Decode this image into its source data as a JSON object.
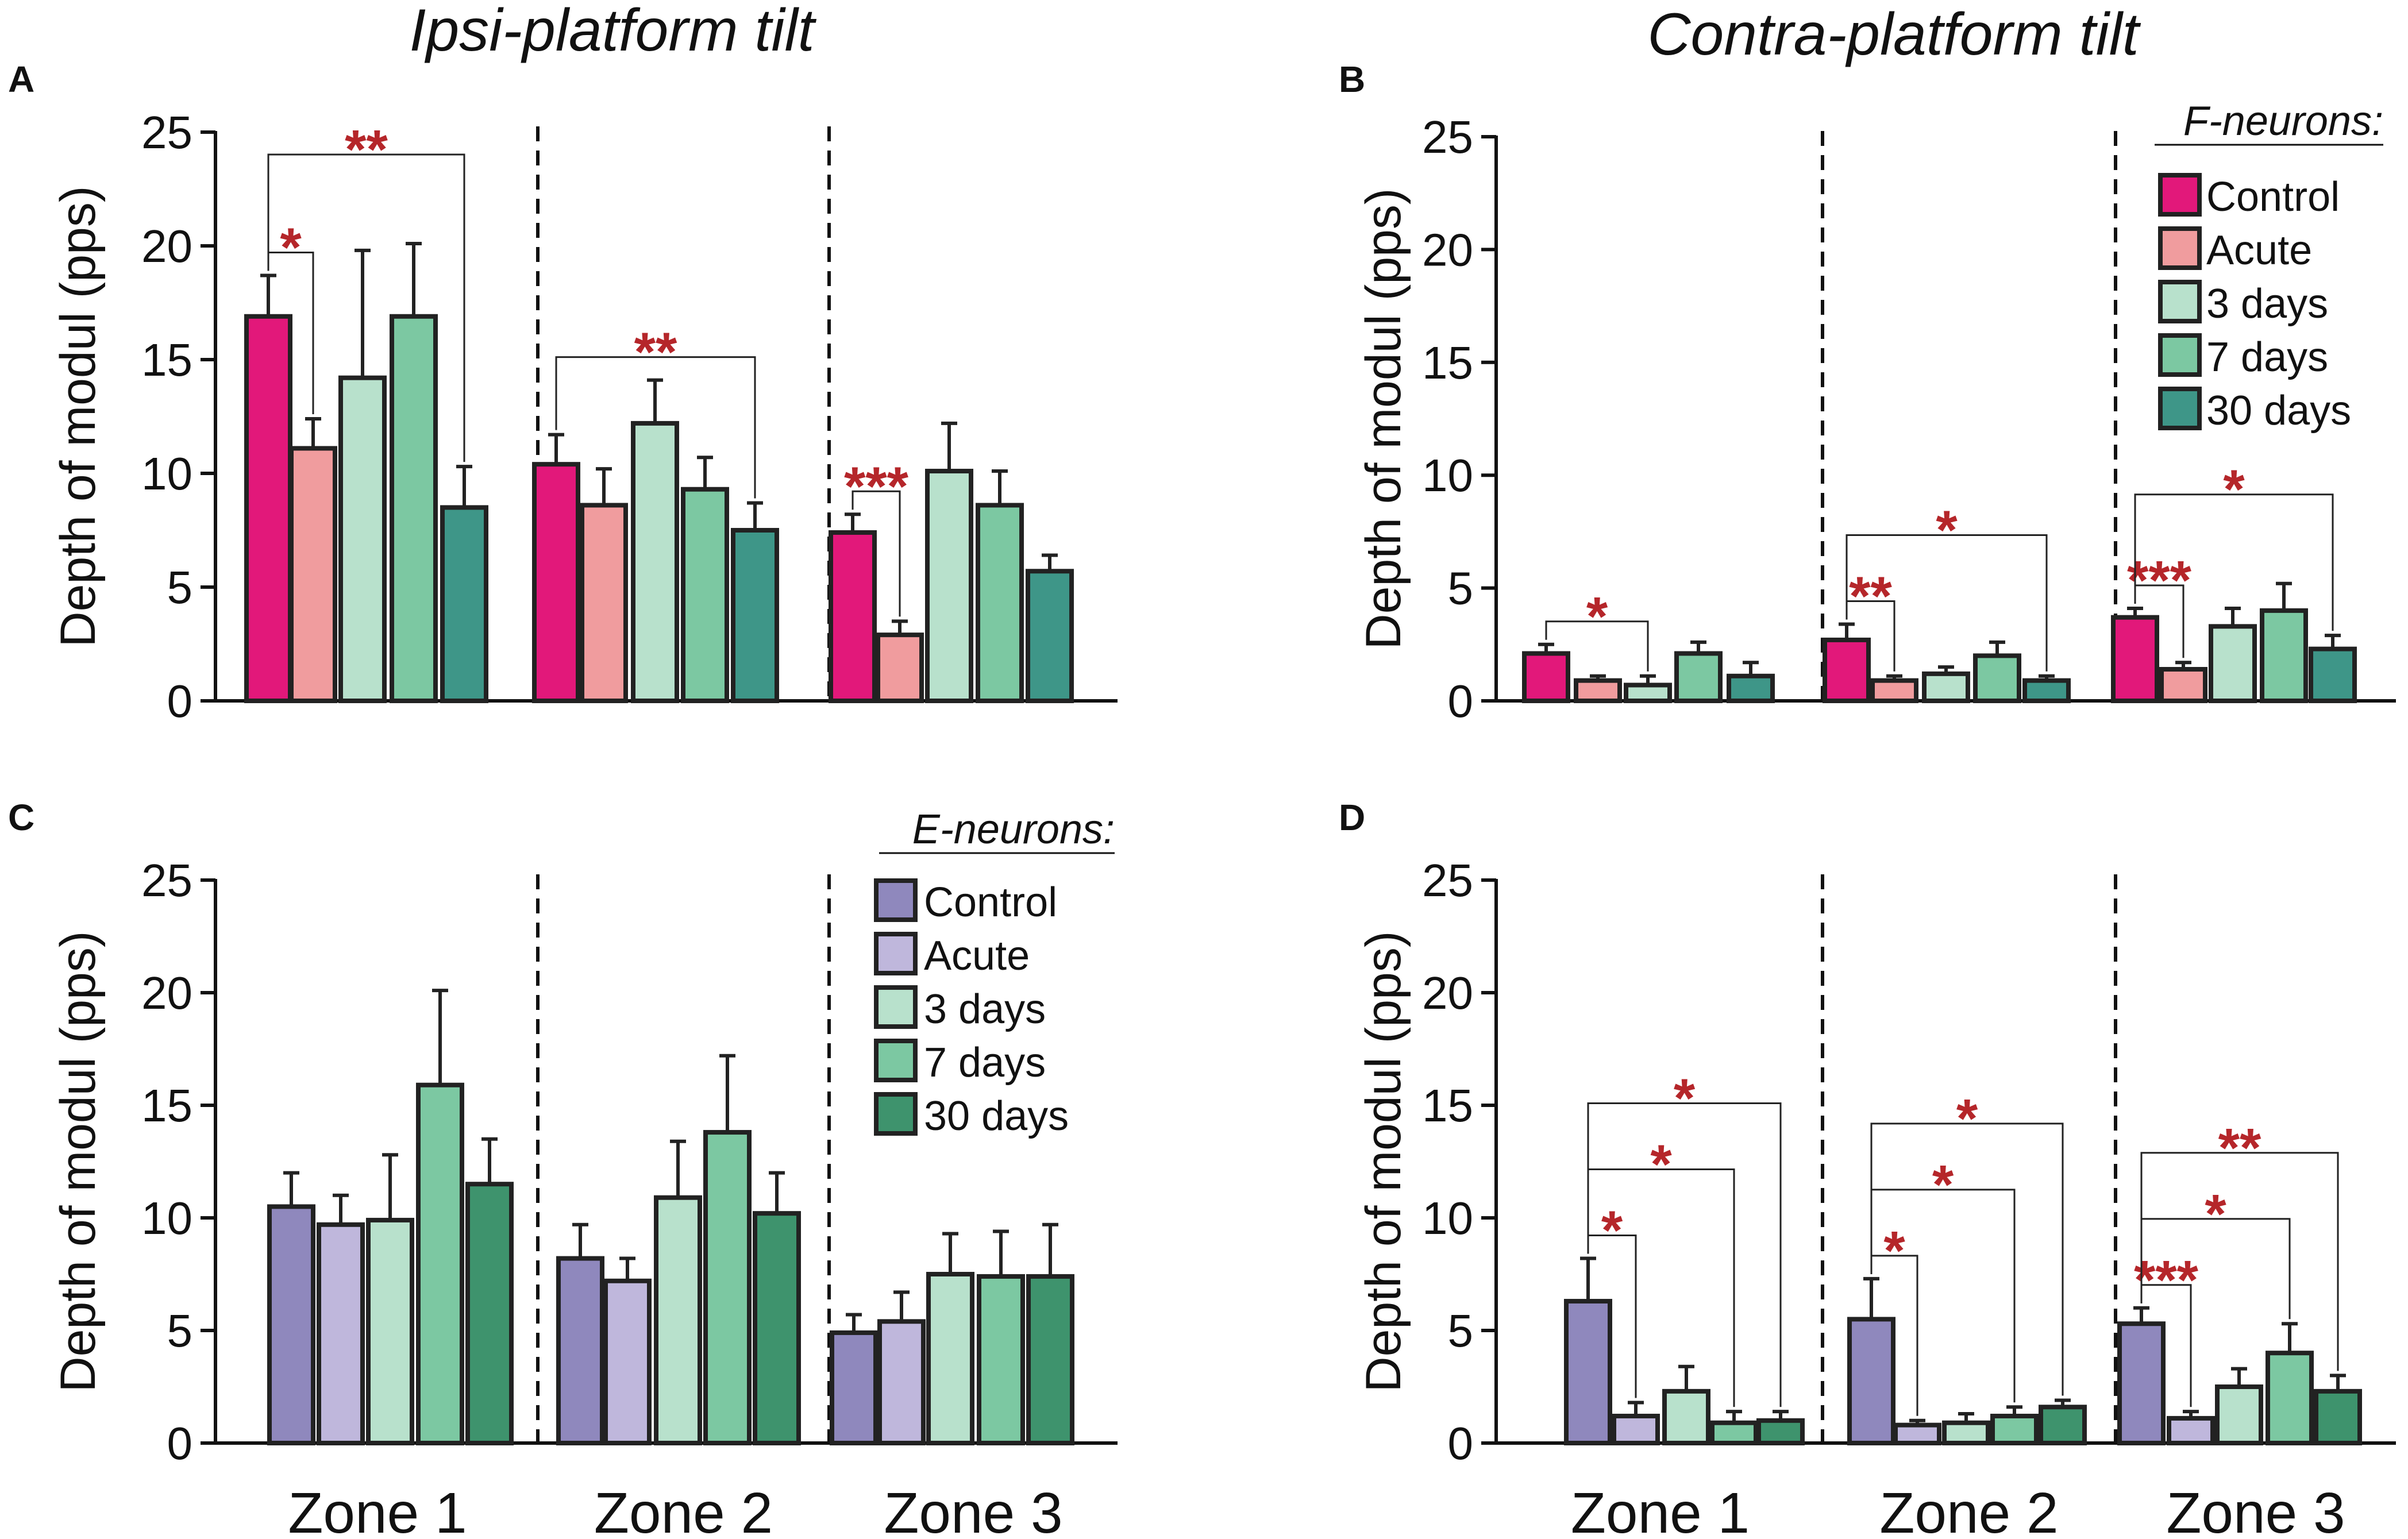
{
  "titles": {
    "left": "Ipsi-platform tilt",
    "right": "Contra-platform tilt"
  },
  "legends": {
    "f": {
      "head": "F-neurons:",
      "labels": [
        "Control",
        "Acute",
        "3 days",
        "7 days",
        "30 days"
      ]
    },
    "e": {
      "head": "E-neurons:",
      "labels": [
        "Control",
        "Acute",
        "3 days",
        "7 days",
        "30 days"
      ]
    }
  },
  "colors": {
    "f": [
      "#e2187a",
      "#f09c9e",
      "#b8e1cc",
      "#7cc8a2",
      "#3e9688"
    ],
    "e": [
      "#8f88bd",
      "#bfb7dc",
      "#b8e1cc",
      "#7cc8a2",
      "#3e936d"
    ],
    "star": "#b5262a"
  },
  "chart_data": [
    {
      "type": "bar",
      "panel": "A",
      "title": "Ipsi-platform tilt",
      "neurons": "F-neurons",
      "ylabel": "Depth of modul (pps)",
      "ylim": [
        0,
        25
      ],
      "yticks": [
        "0",
        "5",
        "10",
        "15",
        "20",
        "25"
      ],
      "categories": [
        "Zone 1",
        "Zone 2",
        "Zone 3"
      ],
      "series_names": [
        "Control",
        "Acute",
        "3 days",
        "7 days",
        "30 days"
      ],
      "values": [
        [
          16.9,
          11.1,
          14.2,
          16.9,
          8.5
        ],
        [
          10.4,
          8.6,
          12.2,
          9.3,
          7.5
        ],
        [
          7.4,
          2.9,
          10.1,
          8.6,
          5.7
        ]
      ],
      "errors": [
        [
          1.8,
          1.3,
          5.6,
          3.2,
          1.8
        ],
        [
          1.3,
          1.6,
          1.9,
          1.4,
          1.2
        ],
        [
          0.8,
          0.6,
          2.1,
          1.5,
          0.7
        ]
      ],
      "significance": [
        {
          "zone": 0,
          "from": 0,
          "to": 1,
          "level": 1,
          "label": "*"
        },
        {
          "zone": 0,
          "from": 0,
          "to": 4,
          "level": 2,
          "label": "**"
        },
        {
          "zone": 1,
          "from": 0,
          "to": 4,
          "level": 1,
          "label": "**"
        },
        {
          "zone": 2,
          "from": 0,
          "to": 1,
          "level": 1,
          "label": "***"
        }
      ]
    },
    {
      "type": "bar",
      "panel": "B",
      "title": "Contra-platform tilt",
      "neurons": "F-neurons",
      "ylabel": "Depth of modul (pps)",
      "ylim": [
        0,
        25
      ],
      "yticks": [
        "0",
        "5",
        "10",
        "15",
        "20",
        "25"
      ],
      "categories": [
        "Zone 1",
        "Zone 2",
        "Zone 3"
      ],
      "series_names": [
        "Control",
        "Acute",
        "3 days",
        "7 days",
        "30 days"
      ],
      "values": [
        [
          2.1,
          0.9,
          0.7,
          2.1,
          1.1
        ],
        [
          2.7,
          0.9,
          1.2,
          2.0,
          0.9
        ],
        [
          3.7,
          1.4,
          3.3,
          4.0,
          2.3
        ]
      ],
      "errors": [
        [
          0.4,
          0.2,
          0.4,
          0.5,
          0.6
        ],
        [
          0.7,
          0.2,
          0.3,
          0.6,
          0.2
        ],
        [
          0.4,
          0.3,
          0.8,
          1.2,
          0.6
        ]
      ],
      "significance": [
        {
          "zone": 0,
          "from": 0,
          "to": 2,
          "level": 1,
          "label": "*"
        },
        {
          "zone": 1,
          "from": 0,
          "to": 1,
          "level": 1,
          "label": "**"
        },
        {
          "zone": 1,
          "from": 0,
          "to": 4,
          "level": 2,
          "label": "*"
        },
        {
          "zone": 2,
          "from": 0,
          "to": 1,
          "level": 1,
          "label": "***"
        },
        {
          "zone": 2,
          "from": 0,
          "to": 4,
          "level": 2,
          "label": "*"
        }
      ]
    },
    {
      "type": "bar",
      "panel": "C",
      "title": "Ipsi-platform tilt",
      "neurons": "E-neurons",
      "ylabel": "Depth of modul (pps)",
      "ylim": [
        0,
        25
      ],
      "yticks": [
        "0",
        "5",
        "10",
        "15",
        "20",
        "25"
      ],
      "categories": [
        "Zone 1",
        "Zone 2",
        "Zone 3"
      ],
      "series_names": [
        "Control",
        "Acute",
        "3 days",
        "7 days",
        "30 days"
      ],
      "values": [
        [
          10.5,
          9.7,
          9.9,
          15.9,
          11.5
        ],
        [
          8.2,
          7.2,
          10.9,
          13.8,
          10.2
        ],
        [
          4.9,
          5.4,
          7.5,
          7.4,
          7.4
        ]
      ],
      "errors": [
        [
          1.5,
          1.3,
          2.9,
          4.2,
          2.0
        ],
        [
          1.5,
          1.0,
          2.5,
          3.4,
          1.8
        ],
        [
          0.8,
          1.3,
          1.8,
          2.0,
          2.3
        ]
      ],
      "significance": []
    },
    {
      "type": "bar",
      "panel": "D",
      "title": "Contra-platform tilt",
      "neurons": "E-neurons",
      "ylabel": "Depth of modul (pps)",
      "ylim": [
        0,
        25
      ],
      "yticks": [
        "0",
        "5",
        "10",
        "15",
        "20",
        "25"
      ],
      "categories": [
        "Zone 1",
        "Zone 2",
        "Zone 3"
      ],
      "series_names": [
        "Control",
        "Acute",
        "3 days",
        "7 days",
        "30 days"
      ],
      "values": [
        [
          6.3,
          1.2,
          2.3,
          0.9,
          1.0
        ],
        [
          5.5,
          0.8,
          0.9,
          1.2,
          1.6
        ],
        [
          5.3,
          1.1,
          2.5,
          4.0,
          2.3
        ]
      ],
      "errors": [
        [
          1.9,
          0.6,
          1.1,
          0.5,
          0.4
        ],
        [
          1.8,
          0.2,
          0.4,
          0.4,
          0.3
        ],
        [
          0.7,
          0.3,
          0.8,
          1.3,
          0.7
        ]
      ],
      "significance": [
        {
          "zone": 0,
          "from": 0,
          "to": 1,
          "level": 1,
          "label": "*"
        },
        {
          "zone": 0,
          "from": 0,
          "to": 3,
          "level": 2,
          "label": "*"
        },
        {
          "zone": 0,
          "from": 0,
          "to": 4,
          "level": 3,
          "label": "*"
        },
        {
          "zone": 1,
          "from": 0,
          "to": 1,
          "level": 1,
          "label": "*"
        },
        {
          "zone": 1,
          "from": 0,
          "to": 3,
          "level": 2,
          "label": "*"
        },
        {
          "zone": 1,
          "from": 0,
          "to": 4,
          "level": 3,
          "label": "*"
        },
        {
          "zone": 2,
          "from": 0,
          "to": 1,
          "level": 1,
          "label": "***"
        },
        {
          "zone": 2,
          "from": 0,
          "to": 3,
          "level": 2,
          "label": "*"
        },
        {
          "zone": 2,
          "from": 0,
          "to": 4,
          "level": 3,
          "label": "**"
        }
      ]
    }
  ]
}
